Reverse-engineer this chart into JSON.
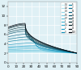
{
  "title": "",
  "xlabel": "",
  "ylabel": "",
  "xlim": [
    0,
    90
  ],
  "ylim": [
    0,
    13
  ],
  "yticks": [
    0,
    2,
    4,
    6,
    8,
    10,
    12
  ],
  "xticks": [
    0,
    10,
    20,
    30,
    40,
    50,
    60,
    70,
    80,
    90
  ],
  "grid": true,
  "overpressures": [
    0.1,
    0.2,
    0.3,
    0.5,
    0.7,
    1.0,
    1.5,
    2.0,
    3.0,
    5.0,
    7.0,
    10.0,
    15.0,
    20.0,
    30.0,
    50.0,
    70.0,
    100.0
  ],
  "legend_labels": [
    "0.1",
    "0.2",
    "0.3",
    "0.5",
    "0.7",
    "1",
    "1.5",
    "2",
    "3",
    "5",
    "7",
    "10",
    "15",
    "20",
    "30",
    "50",
    "70",
    "100"
  ],
  "colors": [
    "#c8eef5",
    "#b0e4ef",
    "#96d8e8",
    "#7dcde2",
    "#63c2db",
    "#49b7d5",
    "#30abcf",
    "#1a9fc9",
    "#1090b8",
    "#0d80a0",
    "#0b7090",
    "#096080",
    "#075068",
    "#054050",
    "#033038",
    "#022028",
    "#011018",
    "#000810"
  ]
}
